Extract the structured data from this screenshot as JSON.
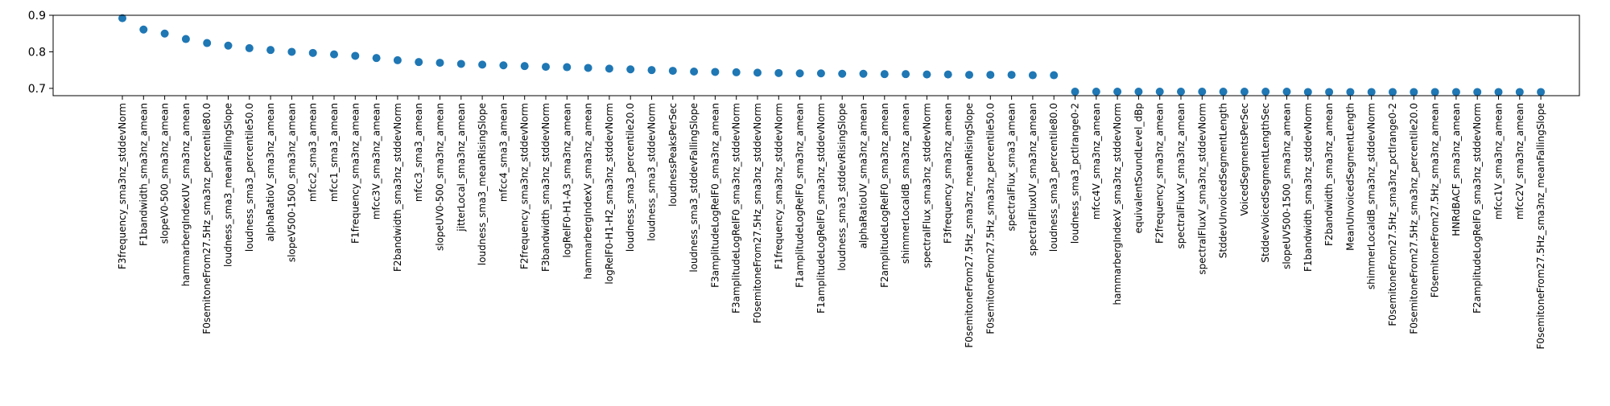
{
  "chart_data": {
    "type": "scatter",
    "title": "",
    "xlabel": "",
    "ylabel": "",
    "ylim": [
      0.68,
      0.9
    ],
    "yticks": [
      0.7,
      0.8,
      0.9
    ],
    "ytick_labels": [
      "0.7",
      "0.8",
      "0.9"
    ],
    "grid": false,
    "marker_color": "#1f77b4",
    "categories": [
      "F3frequency_sma3nz_stddevNorm",
      "F1bandwidth_sma3nz_amean",
      "slopeV0-500_sma3nz_amean",
      "hammarbergIndexUV_sma3nz_amean",
      "F0semitoneFrom27.5Hz_sma3nz_percentile80.0",
      "loudness_sma3_meanFallingSlope",
      "loudness_sma3_percentile50.0",
      "alphaRatioV_sma3nz_amean",
      "slopeV500-1500_sma3nz_amean",
      "mfcc2_sma3_amean",
      "mfcc1_sma3_amean",
      "F1frequency_sma3nz_amean",
      "mfcc3V_sma3nz_amean",
      "F2bandwidth_sma3nz_stddevNorm",
      "mfcc3_sma3_amean",
      "slopeUV0-500_sma3nz_amean",
      "jitterLocal_sma3nz_amean",
      "loudness_sma3_meanRisingSlope",
      "mfcc4_sma3_amean",
      "F2frequency_sma3nz_stddevNorm",
      "F3bandwidth_sma3nz_stddevNorm",
      "logRelF0-H1-A3_sma3nz_amean",
      "hammarbergIndexV_sma3nz_amean",
      "logRelF0-H1-H2_sma3nz_stddevNorm",
      "loudness_sma3_percentile20.0",
      "loudness_sma3_stddevNorm",
      "loudnessPeaksPerSec",
      "loudness_sma3_stddevFallingSlope",
      "F3amplitudeLogRelF0_sma3nz_amean",
      "F3amplitudeLogRelF0_sma3nz_stddevNorm",
      "F0semitoneFrom27.5Hz_sma3nz_stddevNorm",
      "F1frequency_sma3nz_stddevNorm",
      "F1amplitudeLogRelF0_sma3nz_amean",
      "F1amplitudeLogRelF0_sma3nz_stddevNorm",
      "loudness_sma3_stddevRisingSlope",
      "alphaRatioUV_sma3nz_amean",
      "F2amplitudeLogRelF0_sma3nz_amean",
      "shimmerLocaldB_sma3nz_amean",
      "spectralFlux_sma3nz_stddevNorm",
      "F3frequency_sma3nz_amean",
      "F0semitoneFrom27.5Hz_sma3nz_meanRisingSlope",
      "F0semitoneFrom27.5Hz_sma3nz_percentile50.0",
      "spectralFlux_sma3_amean",
      "spectralFluxUV_sma3nz_amean",
      "loudness_sma3_percentile80.0",
      "loudness_sma3_pctlrange0-2",
      "mfcc4V_sma3nz_amean",
      "hammarbergIndexV_sma3nz_stddevNorm",
      "equivalentSoundLevel_dBp",
      "F2frequency_sma3nz_amean",
      "spectralFluxV_sma3nz_amean",
      "spectralFluxV_sma3nz_stddevNorm",
      "StddevUnvoicedSegmentLength",
      "VoicedSegmentsPerSec",
      "StddevVoicedSegmentLengthSec",
      "slopeUV500-1500_sma3nz_amean",
      "F1bandwidth_sma3nz_stddevNorm",
      "F2bandwidth_sma3nz_amean",
      "MeanUnvoicedSegmentLength",
      "shimmerLocaldB_sma3nz_stddevNorm",
      "F0semitoneFrom27.5Hz_sma3nz_pctlrange0-2",
      "F0semitoneFrom27.5Hz_sma3nz_percentile20.0",
      "F0semitoneFrom27.5Hz_sma3nz_amean",
      "HNRdBACF_sma3nz_amean",
      "F2amplitudeLogRelF0_sma3nz_stddevNorm",
      "mfcc1V_sma3nz_amean",
      "mfcc2V_sma3nz_amean",
      "F0semitoneFrom27.5Hz_sma3nz_meanFallingSlope"
    ],
    "values": [
      0.892,
      0.861,
      0.85,
      0.835,
      0.824,
      0.817,
      0.81,
      0.805,
      0.8,
      0.797,
      0.793,
      0.789,
      0.783,
      0.777,
      0.772,
      0.77,
      0.767,
      0.765,
      0.763,
      0.761,
      0.759,
      0.758,
      0.756,
      0.754,
      0.752,
      0.75,
      0.748,
      0.746,
      0.745,
      0.744,
      0.743,
      0.742,
      0.741,
      0.741,
      0.74,
      0.74,
      0.739,
      0.739,
      0.738,
      0.738,
      0.737,
      0.737,
      0.737,
      0.736,
      0.736,
      0.691,
      0.691,
      0.691,
      0.691,
      0.691,
      0.691,
      0.691,
      0.691,
      0.691,
      0.691,
      0.691,
      0.69,
      0.69,
      0.69,
      0.69,
      0.69,
      0.69,
      0.69,
      0.69,
      0.69,
      0.69,
      0.69,
      0.69
    ]
  }
}
